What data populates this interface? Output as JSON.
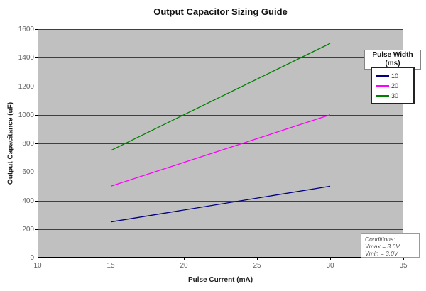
{
  "chart_data": {
    "type": "line",
    "title": "Output Capacitor Sizing Guide",
    "xlabel": "Pulse Current (mA)",
    "ylabel": "Output Capacitance (uF)",
    "xlim": [
      10,
      35
    ],
    "ylim": [
      0,
      1600
    ],
    "xticks": [
      10,
      15,
      20,
      25,
      30,
      35
    ],
    "yticks": [
      0,
      200,
      400,
      600,
      800,
      1000,
      1200,
      1400,
      1600
    ],
    "grid": "horizontal",
    "legend_position": "inside-top-right",
    "colors": {
      "plot_background": "#C0C0C0",
      "gridline": "#3f3f3f",
      "axis": "#000000",
      "tick_label": "#646464"
    },
    "series": [
      {
        "name": "10",
        "color": "#000080",
        "points": [
          [
            15,
            250
          ],
          [
            30,
            500
          ]
        ]
      },
      {
        "name": "20",
        "color": "#FF00FF",
        "points": [
          [
            15,
            500
          ],
          [
            30,
            1000
          ]
        ]
      },
      {
        "name": "30",
        "color": "#008000",
        "points": [
          [
            15,
            750
          ],
          [
            30,
            1500
          ]
        ]
      }
    ],
    "legend": {
      "title_lines": [
        "Pulse Width",
        "(ms)"
      ],
      "entries": [
        "10",
        "20",
        "30"
      ]
    },
    "annotation": {
      "lines": [
        "Conditions:",
        "Vmax = 3.6V",
        "Vmin = 3.0V"
      ],
      "position": "inside-bottom-right"
    }
  }
}
